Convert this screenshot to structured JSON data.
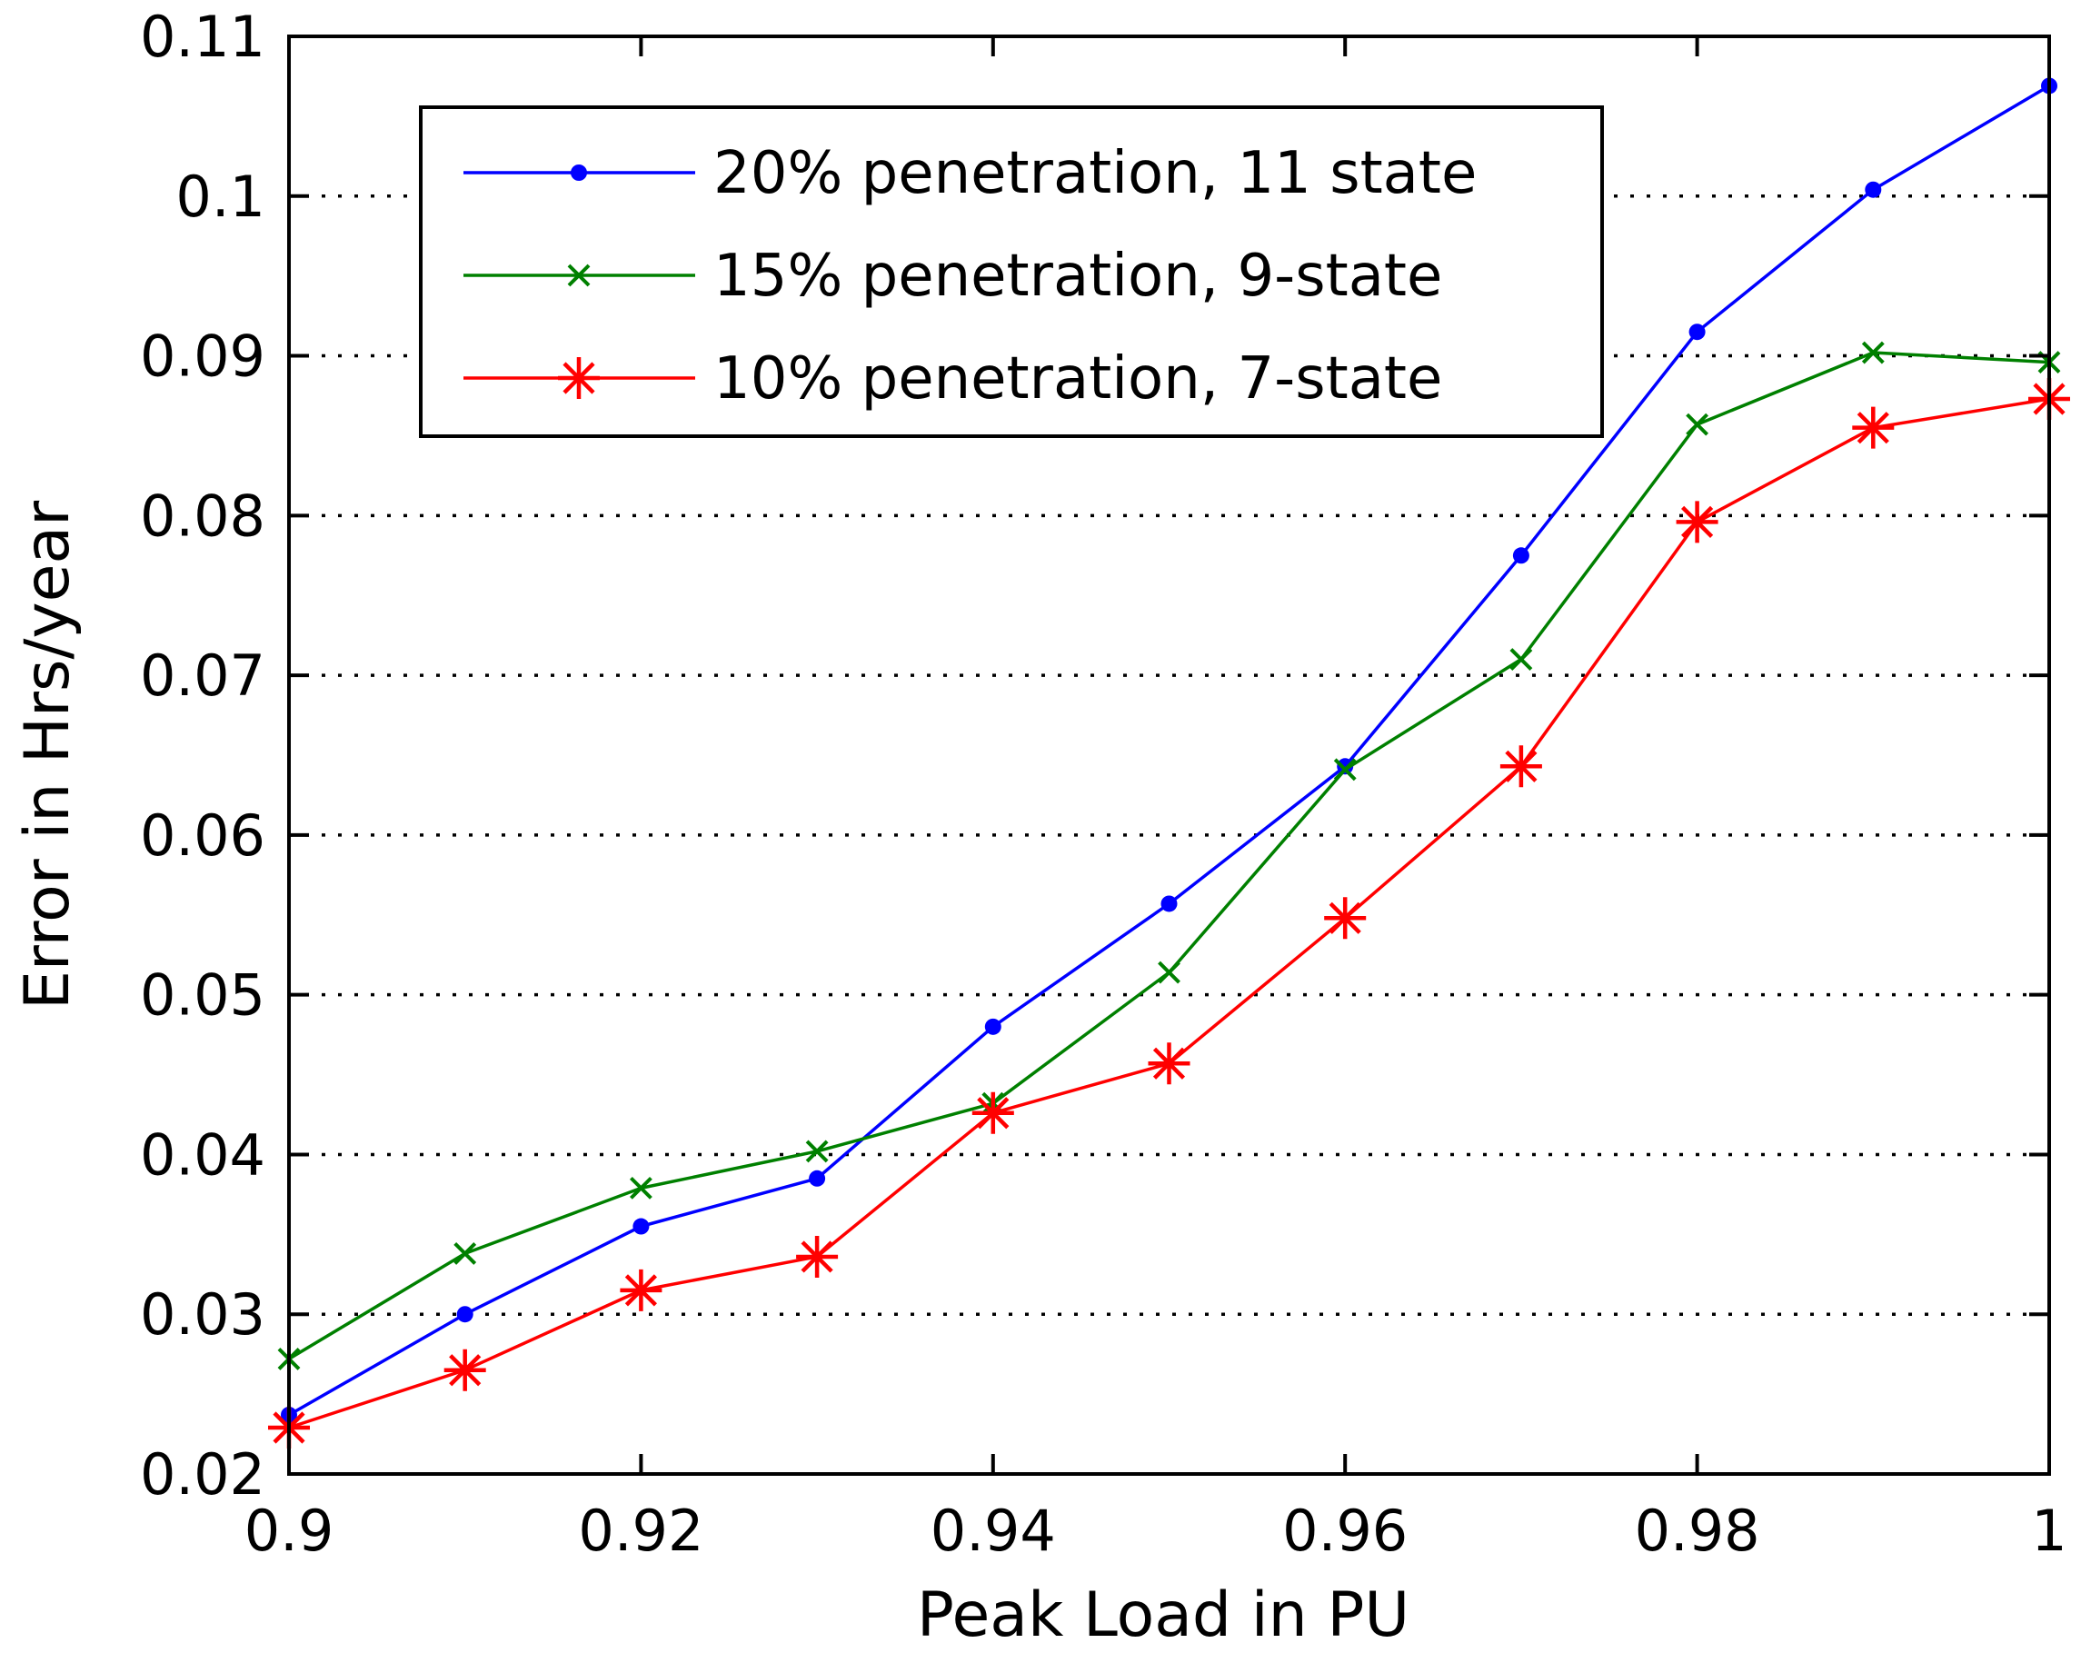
{
  "chart_data": {
    "type": "line",
    "title": "",
    "xlabel": "Peak Load in PU",
    "ylabel": "Error in Hrs/year",
    "xlim": [
      0.9,
      1.0
    ],
    "ylim": [
      0.02,
      0.11
    ],
    "xticks": [
      0.9,
      0.92,
      0.94,
      0.96,
      0.98,
      1.0
    ],
    "xtick_labels": [
      "0.9",
      "0.92",
      "0.94",
      "0.96",
      "0.98",
      "1"
    ],
    "yticks": [
      0.02,
      0.03,
      0.04,
      0.05,
      0.06,
      0.07,
      0.08,
      0.09,
      0.1,
      0.11
    ],
    "ytick_labels": [
      "0.02",
      "0.03",
      "0.04",
      "0.05",
      "0.06",
      "0.07",
      "0.08",
      "0.09",
      "0.1",
      "0.11"
    ],
    "grid": "horizontal-dotted",
    "legend_position": "top-left",
    "x": [
      0.9,
      0.91,
      0.92,
      0.93,
      0.94,
      0.95,
      0.96,
      0.97,
      0.98,
      0.99,
      1.0
    ],
    "series": [
      {
        "name": "20% penetration, 11 state",
        "color": "#0000ff",
        "marker": "dot",
        "values": [
          0.0237,
          0.03,
          0.0355,
          0.0385,
          0.048,
          0.0557,
          0.0643,
          0.0775,
          0.0915,
          0.1004,
          0.1069
        ]
      },
      {
        "name": "15% penetration, 9-state",
        "color": "#008000",
        "marker": "x",
        "values": [
          0.0272,
          0.0338,
          0.0379,
          0.0402,
          0.0432,
          0.0514,
          0.0641,
          0.071,
          0.0857,
          0.0902,
          0.0896
        ]
      },
      {
        "name": "10% penetration, 7-state",
        "color": "#ff0000",
        "marker": "star",
        "values": [
          0.0229,
          0.0265,
          0.0315,
          0.0336,
          0.0426,
          0.0457,
          0.0548,
          0.0643,
          0.0796,
          0.0855,
          0.0873
        ]
      }
    ]
  }
}
